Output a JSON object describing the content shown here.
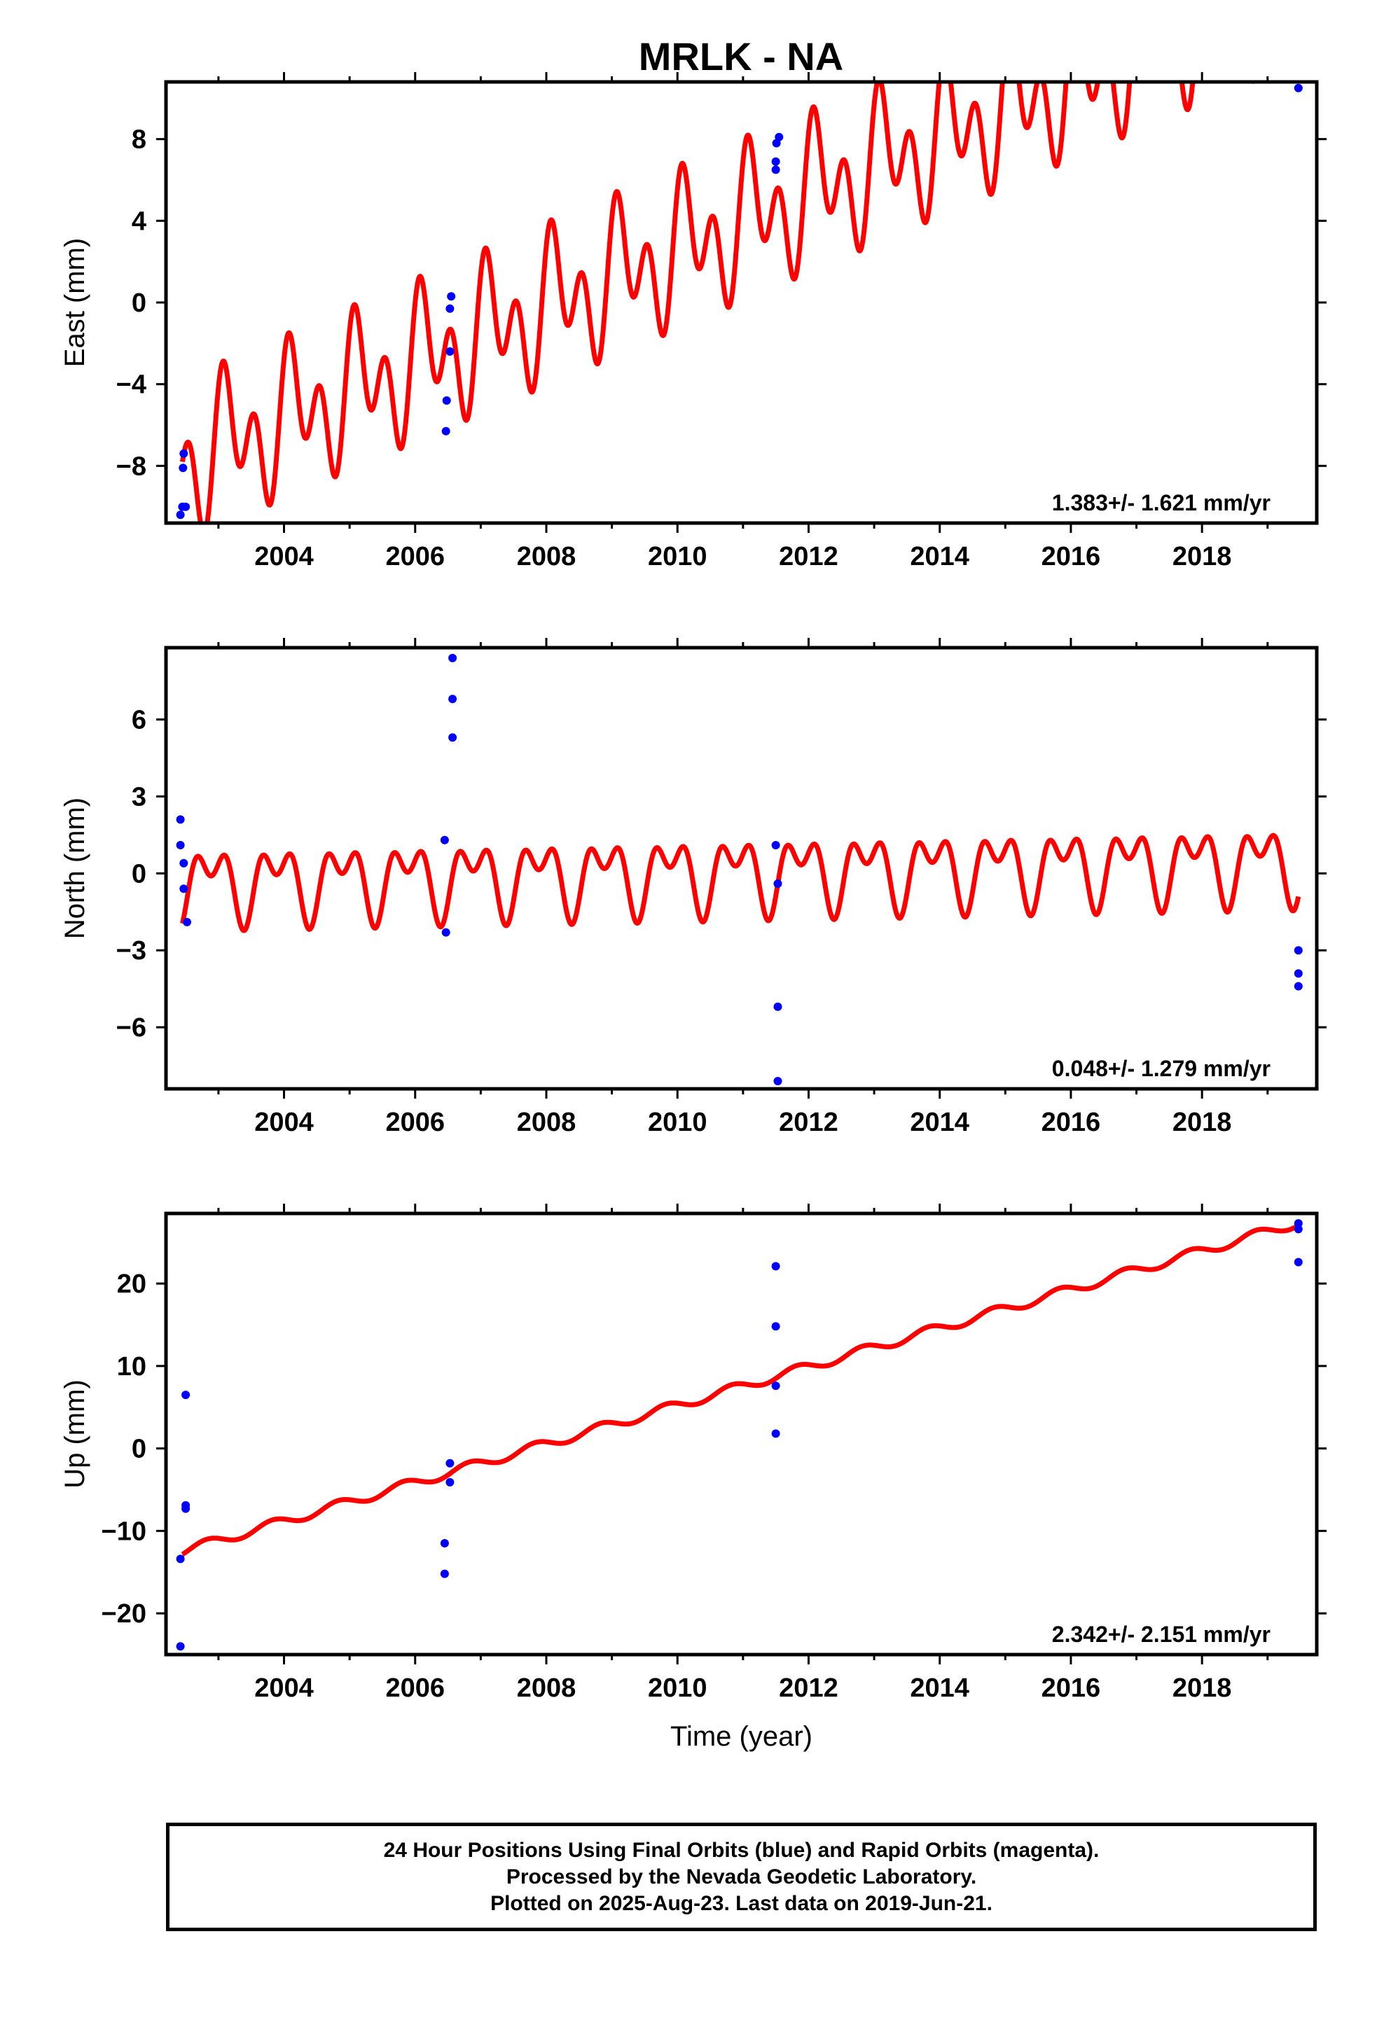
{
  "title": "MRLK - NA",
  "colors": {
    "model": "#ff0000",
    "final": "#0000ff",
    "rapid": "#ff00ff",
    "frame": "#000000"
  },
  "chart_data": [
    {
      "type": "scatter",
      "component": "east",
      "ylabel": "East (mm)",
      "xlabel": "",
      "xlim": [
        2002.2,
        2019.75
      ],
      "ylim": [
        -10.8,
        10.8
      ],
      "xticks": [
        2004,
        2006,
        2008,
        2010,
        2012,
        2014,
        2016,
        2018
      ],
      "yticks": [
        -8,
        -4,
        0,
        4,
        8
      ],
      "rate_label": "1.383+/- 1.621 mm/yr",
      "model": {
        "t0": 2002.45,
        "offset": -7.9,
        "rate": 1.383,
        "annual_sin": -2.0,
        "annual_cos": -0.5,
        "semi_sin": 2.4,
        "semi_cos": 0.6
      },
      "series": [
        {
          "name": "Final Orbits",
          "color": "#0000ff",
          "points": [
            [
              2002.42,
              -10.4
            ],
            [
              2002.45,
              -10.0
            ],
            [
              2002.5,
              -10.0
            ],
            [
              2002.47,
              -7.4
            ],
            [
              2002.46,
              -8.1
            ],
            [
              2006.47,
              -6.3
            ],
            [
              2006.48,
              -4.8
            ],
            [
              2006.53,
              -2.4
            ],
            [
              2006.53,
              -0.3
            ],
            [
              2006.55,
              0.3
            ],
            [
              2011.5,
              6.5
            ],
            [
              2011.5,
              6.9
            ],
            [
              2011.51,
              7.8
            ],
            [
              2011.55,
              8.1
            ],
            [
              2019.47,
              10.5
            ]
          ]
        }
      ]
    },
    {
      "type": "scatter",
      "component": "north",
      "ylabel": "North (mm)",
      "xlabel": "",
      "xlim": [
        2002.2,
        2019.75
      ],
      "ylim": [
        -8.4,
        8.8
      ],
      "xticks": [
        2004,
        2006,
        2008,
        2010,
        2012,
        2014,
        2016,
        2018
      ],
      "yticks": [
        -6,
        -3,
        0,
        3,
        6
      ],
      "rate_label": "0.048+/- 1.279 mm/yr",
      "model": {
        "t0": 2002.45,
        "offset": -0.35,
        "rate": 0.048,
        "annual_sin": 0.4,
        "annual_cos": -1.0,
        "semi_sin": 0.6,
        "semi_cos": -0.6
      },
      "series": [
        {
          "name": "Final Orbits",
          "color": "#0000ff",
          "points": [
            [
              2002.42,
              2.1
            ],
            [
              2002.42,
              1.1
            ],
            [
              2002.47,
              0.4
            ],
            [
              2002.47,
              -0.6
            ],
            [
              2002.52,
              -1.9
            ],
            [
              2006.45,
              1.3
            ],
            [
              2006.47,
              -2.3
            ],
            [
              2006.57,
              8.4
            ],
            [
              2006.57,
              6.8
            ],
            [
              2006.57,
              5.3
            ],
            [
              2011.5,
              1.1
            ],
            [
              2011.53,
              -0.4
            ],
            [
              2011.53,
              -5.2
            ],
            [
              2011.53,
              -8.1
            ],
            [
              2019.47,
              -3.0
            ],
            [
              2019.47,
              -3.9
            ],
            [
              2019.47,
              -4.4
            ]
          ]
        }
      ]
    },
    {
      "type": "scatter",
      "component": "up",
      "ylabel": "Up (mm)",
      "xlabel": "Time (year)",
      "xlim": [
        2002.2,
        2019.75
      ],
      "ylim": [
        -25,
        28.5
      ],
      "xticks": [
        2004,
        2006,
        2008,
        2010,
        2012,
        2014,
        2016,
        2018
      ],
      "yticks": [
        -20,
        -10,
        0,
        10,
        20
      ],
      "rate_label": "2.342+/- 2.151 mm/yr",
      "model": {
        "t0": 2002.45,
        "offset": -12.45,
        "rate": 2.342,
        "annual_sin": 0.4,
        "annual_cos": -0.4,
        "semi_sin": 0.0,
        "semi_cos": 0.0
      },
      "series": [
        {
          "name": "Final Orbits",
          "color": "#0000ff",
          "points": [
            [
              2002.42,
              -13.4
            ],
            [
              2002.42,
              -24.0
            ],
            [
              2002.5,
              6.5
            ],
            [
              2002.5,
              -6.9
            ],
            [
              2002.5,
              -7.3
            ],
            [
              2006.45,
              -11.5
            ],
            [
              2006.45,
              -15.2
            ],
            [
              2006.53,
              -1.8
            ],
            [
              2006.53,
              -4.1
            ],
            [
              2011.5,
              22.1
            ],
            [
              2011.5,
              14.8
            ],
            [
              2011.5,
              7.6
            ],
            [
              2011.5,
              1.8
            ],
            [
              2019.47,
              27.3
            ],
            [
              2019.47,
              26.6
            ],
            [
              2019.47,
              22.6
            ]
          ]
        }
      ]
    }
  ],
  "footer": {
    "line1": "24 Hour Positions Using Final Orbits (blue) and Rapid Orbits (magenta).",
    "line2": "Processed by the Nevada Geodetic Laboratory.",
    "line3": "Plotted on 2025-Aug-23. Last data on 2019-Jun-21."
  }
}
